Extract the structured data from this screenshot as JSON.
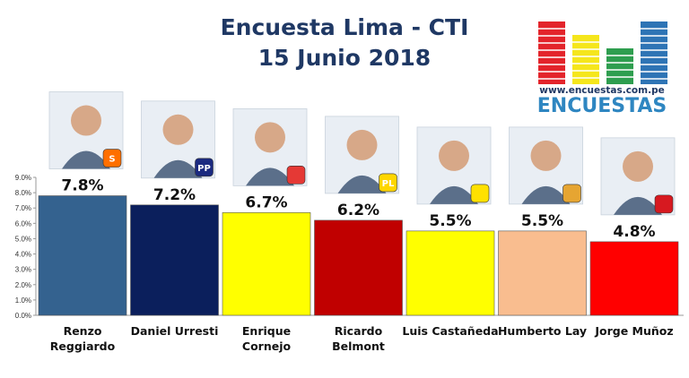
{
  "header": {
    "title_line1": "Encuesta Lima - CTI",
    "title_line2": "15 Junio 2018"
  },
  "logo": {
    "url": "www.encuestas.com.pe",
    "brand": "ENCUESTAS",
    "colors": [
      "#e3242b",
      "#f5e61c",
      "#2e9e4f",
      "#2e74b5"
    ]
  },
  "chart_data": {
    "type": "bar",
    "title": "",
    "xlabel": "",
    "ylabel": "",
    "ylim": [
      0,
      9
    ],
    "ytick_step": 1,
    "ytick_labels": [
      "0.0%",
      "1.0%",
      "2.0%",
      "3.0%",
      "4.0%",
      "5.0%",
      "6.0%",
      "7.0%",
      "8.0%",
      "9.0%"
    ],
    "grid": false,
    "categories": [
      [
        "Renzo",
        "Reggiardo"
      ],
      [
        "Daniel Urresti"
      ],
      [
        "Enrique",
        "Cornejo"
      ],
      [
        "Ricardo",
        "Belmont"
      ],
      [
        "Luis Castañeda"
      ],
      [
        "Humberto Lay"
      ],
      [
        "Jorge Muñoz"
      ]
    ],
    "values": [
      7.8,
      7.2,
      6.7,
      6.2,
      5.5,
      5.5,
      4.8
    ],
    "value_labels": [
      "7.8%",
      "7.2%",
      "6.7%",
      "6.2%",
      "5.5%",
      "5.5%",
      "4.8%"
    ],
    "bar_colors": [
      "#34628f",
      "#0b1f5c",
      "#ffff00",
      "#c00000",
      "#ffff00",
      "#f9bd8f",
      "#ff0000"
    ]
  },
  "candidates": [
    {
      "photo": "candidate-photo",
      "party_icon": "party-s-logo-icon",
      "party_text": "S",
      "party_color": "#ff6f00"
    },
    {
      "photo": "candidate-photo",
      "party_icon": "podemos-logo-icon",
      "party_text": "PP",
      "party_color": "#1b2a80"
    },
    {
      "photo": "candidate-photo",
      "party_icon": "house-logo-icon",
      "party_text": "",
      "party_color": "#e53935"
    },
    {
      "photo": "candidate-photo",
      "party_icon": "pl-logo-icon",
      "party_text": "PL",
      "party_color": "#ffd600"
    },
    {
      "photo": "candidate-photo",
      "party_icon": "solidaridad-logo-icon",
      "party_text": "",
      "party_color": "#ffe100"
    },
    {
      "photo": "candidate-photo",
      "party_icon": "wheat-logo-icon",
      "party_text": "",
      "party_color": "#e6a532"
    },
    {
      "photo": "candidate-photo",
      "party_icon": "peru-flag-logo-icon",
      "party_text": "",
      "party_color": "#d71920"
    }
  ]
}
